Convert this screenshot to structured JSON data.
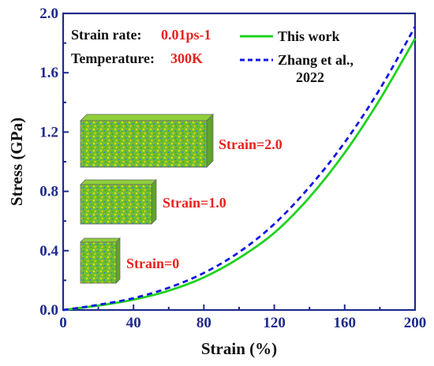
{
  "info": {
    "rate_key": "Strain rate:",
    "rate_value": "0.01ps-1",
    "temp_key": "Temperature:",
    "temp_value": "300K"
  },
  "legend": {
    "items": [
      {
        "label_lines": [
          "This work"
        ],
        "color": "#1fd21f",
        "dash": false
      },
      {
        "label_lines": [
          "Zhang et al.,",
          "2022"
        ],
        "color": "#1616e0",
        "dash": true
      }
    ]
  },
  "insets": [
    {
      "label": "Strain=2.0",
      "icon": "atomistic-box-strain-2-icon"
    },
    {
      "label": "Strain=1.0",
      "icon": "atomistic-box-strain-1-icon"
    },
    {
      "label": "Strain=0",
      "icon": "atomistic-box-strain-0-icon"
    }
  ],
  "chart_data": {
    "type": "line",
    "xlabel": "Strain (%)",
    "ylabel": "Stress (GPa)",
    "xlim": [
      0,
      200
    ],
    "ylim": [
      0,
      2.0
    ],
    "xticks": [
      "0",
      "40",
      "80",
      "120",
      "160",
      "200"
    ],
    "yticks": [
      "0.0",
      "0.4",
      "0.8",
      "1.2",
      "1.6",
      "2.0"
    ],
    "legend_position": "top-right",
    "series": [
      {
        "name": "This work",
        "color": "#1fd21f",
        "style": "solid",
        "x": [
          0,
          20,
          40,
          60,
          80,
          100,
          120,
          140,
          160,
          180,
          200
        ],
        "y": [
          0.0,
          0.03,
          0.07,
          0.13,
          0.22,
          0.35,
          0.52,
          0.76,
          1.06,
          1.42,
          1.83
        ]
      },
      {
        "name": "Zhang et al., 2022",
        "color": "#1616e0",
        "style": "dashed",
        "x": [
          0,
          20,
          40,
          60,
          80,
          100,
          120,
          140,
          160,
          180,
          200
        ],
        "y": [
          0.0,
          0.035,
          0.08,
          0.15,
          0.25,
          0.39,
          0.58,
          0.83,
          1.13,
          1.49,
          1.91
        ]
      }
    ]
  }
}
